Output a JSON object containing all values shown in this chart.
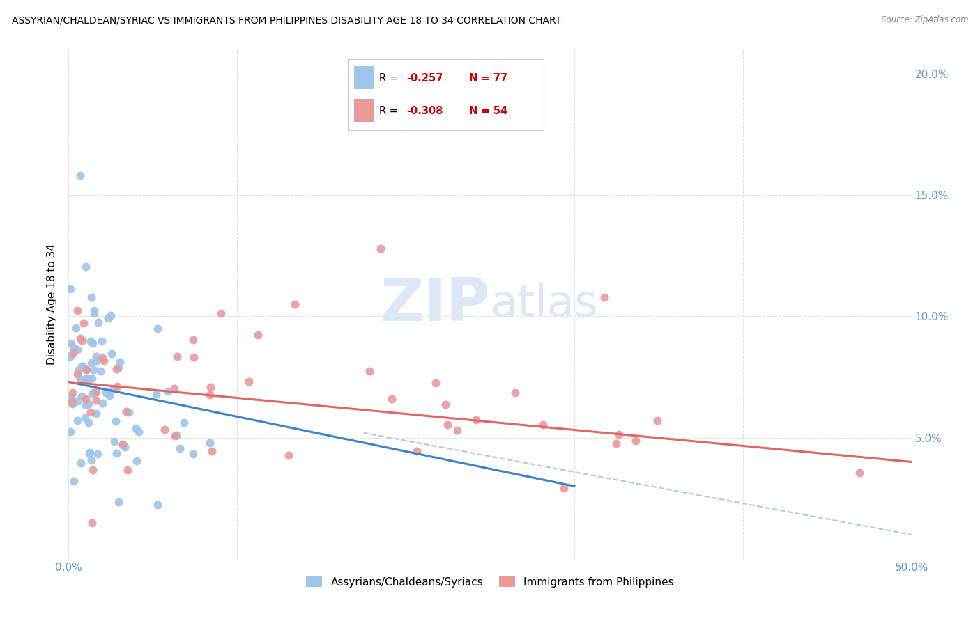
{
  "title": "ASSYRIAN/CHALDEAN/SYRIAC VS IMMIGRANTS FROM PHILIPPINES DISABILITY AGE 18 TO 34 CORRELATION CHART",
  "source": "Source: ZipAtlas.com",
  "ylabel": "Disability Age 18 to 34",
  "xlim": [
    0.0,
    0.5
  ],
  "ylim": [
    0.0,
    0.21
  ],
  "blue_color": "#9fc5e8",
  "pink_color": "#ea9999",
  "blue_line_color": "#3d85c8",
  "pink_line_color": "#e06666",
  "dashed_line_color": "#b4c7e7",
  "legend_R_blue": "-0.257",
  "legend_N_blue": "77",
  "legend_R_pink": "-0.308",
  "legend_N_pink": "54",
  "legend_label_blue": "Assyrians/Chaldeans/Syriacs",
  "legend_label_pink": "Immigrants from Philippines",
  "axis_color": "#5b9bd5",
  "background_color": "#ffffff",
  "grid_color": "#e0e0e0"
}
